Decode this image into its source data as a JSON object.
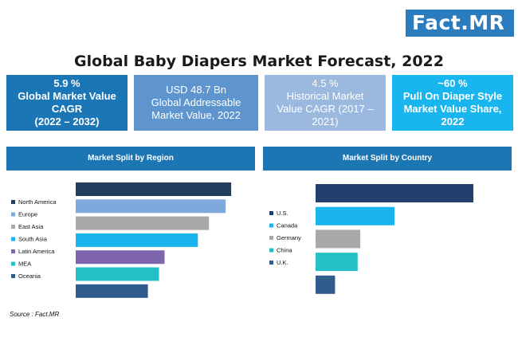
{
  "logo": {
    "text": "Fact",
    "dot": ".",
    "text2": "MR"
  },
  "title": "Global Baby Diapers Market Forecast, 2022",
  "kpis": [
    {
      "line1": "5.9 %",
      "line2": "Global Market Value",
      "line3": "CAGR",
      "line4": "(2022 – 2032)"
    },
    {
      "line1": "USD 48.7 Bn",
      "line2": "Global Addressable",
      "line3": "Market Value, 2022",
      "line4": ""
    },
    {
      "line1": "4.5 %",
      "line2": "Historical Market",
      "line3": "Value CAGR (2017 –",
      "line4": "2021)"
    },
    {
      "line1": "~60 %",
      "line2": "Pull On Diaper Style",
      "line3": "Market Value Share,",
      "line4": "2022"
    }
  ],
  "source": "Source : Fact.MR",
  "chart_data": [
    {
      "type": "bar",
      "orientation": "horizontal",
      "title": "Market Split by Region",
      "categories": [
        "North America",
        "Europe",
        "East Asia",
        "South Asia",
        "Latin America",
        "MEA",
        "Oceania"
      ],
      "values": [
        28,
        27,
        24,
        22,
        16,
        15,
        13
      ],
      "colors": [
        "#233d5d",
        "#7fa9dc",
        "#a9a9a9",
        "#1ab4ef",
        "#7e65ae",
        "#25c0c5",
        "#2f5c8c"
      ],
      "legend": "left",
      "xlim": [
        0,
        30
      ]
    },
    {
      "type": "bar",
      "orientation": "horizontal",
      "title": "Market Split by Country",
      "categories": [
        "U.S.",
        "Canada",
        "Germany",
        "China",
        "U.K."
      ],
      "values": [
        30,
        15,
        8.5,
        8,
        3.7
      ],
      "colors": [
        "#21406d",
        "#1ab4ef",
        "#a9a9a9",
        "#25c0c5",
        "#2f5c8c"
      ],
      "legend": "left",
      "xlim": [
        0,
        30
      ]
    }
  ]
}
